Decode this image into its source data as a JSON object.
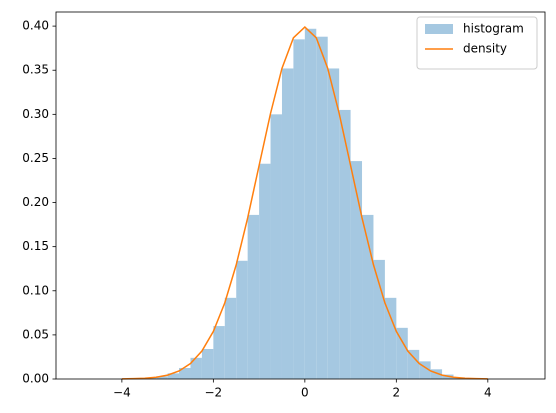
{
  "chart_data": {
    "type": "histogram",
    "xlim": [
      -5.44,
      5.25
    ],
    "ylim": [
      0,
      0.416
    ],
    "xticks": [
      {
        "value": -4,
        "label": "−4"
      },
      {
        "value": -2,
        "label": "−2"
      },
      0,
      2,
      4
    ],
    "yticks": [
      {
        "value": 0,
        "label": "0.00"
      },
      {
        "value": 0.05,
        "label": "0.05"
      },
      {
        "value": 0.1,
        "label": "0.10"
      },
      {
        "value": 0.15,
        "label": "0.15"
      },
      {
        "value": 0.2,
        "label": "0.20"
      },
      {
        "value": 0.25,
        "label": "0.25"
      },
      {
        "value": 0.3,
        "label": "0.30"
      },
      {
        "value": 0.35,
        "label": "0.35"
      },
      {
        "value": 0.4,
        "label": "0.40"
      }
    ],
    "legend": "upper right",
    "series": [
      {
        "name": "histogram",
        "type": "histogram",
        "color": "#a5c8e1",
        "bins": [
          -4,
          -3.75,
          -3.5,
          -3.25,
          -3,
          -2.75,
          -2.5,
          -2.25,
          -2,
          -1.75,
          -1.5,
          -1.25,
          -1,
          -0.75,
          -0.5,
          -0.25,
          0,
          0.25,
          0.5,
          0.75,
          1,
          1.25,
          1.5,
          1.75,
          2,
          2.25,
          2.5,
          2.75,
          3,
          3.25,
          3.5,
          3.75,
          4
        ],
        "values": [
          0.0002,
          0.0006,
          0.0013,
          0.003,
          0.0064,
          0.0125,
          0.024,
          0.034,
          0.06,
          0.092,
          0.134,
          0.186,
          0.244,
          0.3,
          0.352,
          0.385,
          0.397,
          0.388,
          0.352,
          0.305,
          0.247,
          0.186,
          0.135,
          0.092,
          0.058,
          0.033,
          0.02,
          0.011,
          0.005,
          0.0018,
          0.0006,
          0.0002
        ]
      },
      {
        "name": "density",
        "type": "line",
        "color": "#ff7f0e",
        "x": [
          -4,
          -3.75,
          -3.5,
          -3.25,
          -3,
          -2.75,
          -2.5,
          -2.25,
          -2,
          -1.75,
          -1.5,
          -1.25,
          -1,
          -0.75,
          -0.5,
          -0.25,
          0,
          0.25,
          0.5,
          0.75,
          1,
          1.25,
          1.5,
          1.75,
          2,
          2.25,
          2.5,
          2.75,
          3,
          3.25,
          3.5,
          3.75,
          4
        ],
        "values": [
          0.0001,
          0.0004,
          0.0009,
          0.002,
          0.0044,
          0.0091,
          0.0175,
          0.0317,
          0.054,
          0.0863,
          0.1295,
          0.1826,
          0.242,
          0.3011,
          0.3521,
          0.3867,
          0.3989,
          0.3867,
          0.3521,
          0.3011,
          0.242,
          0.1826,
          0.1295,
          0.0863,
          0.054,
          0.0317,
          0.0175,
          0.0091,
          0.0044,
          0.002,
          0.0009,
          0.0004,
          0.0001
        ]
      }
    ]
  }
}
